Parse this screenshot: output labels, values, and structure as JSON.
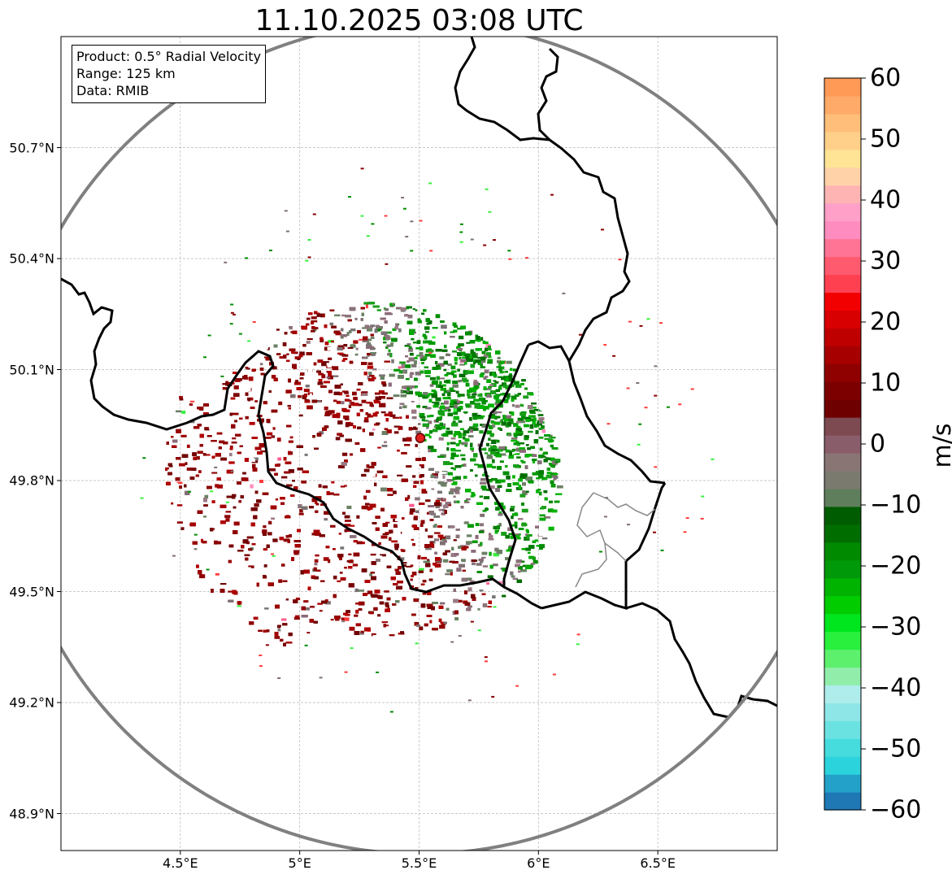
{
  "title": "11.10.2025 03:08 UTC",
  "info": {
    "line1": "Product: 0.5° Radial Velocity",
    "line2": "Range: 125 km",
    "line3": "Data: RMIB"
  },
  "map": {
    "lon_range": [
      4.0,
      7.0
    ],
    "lat_range": [
      48.8,
      51.0
    ],
    "radar_site": {
      "lon": 5.505,
      "lat": 49.915
    },
    "range_ring_km": 125,
    "grid": true,
    "lat_ticks": [
      {
        "value": 50.7,
        "label": "50.7°N"
      },
      {
        "value": 50.4,
        "label": "50.4°N"
      },
      {
        "value": 50.1,
        "label": "50.1°N"
      },
      {
        "value": 49.8,
        "label": "49.8°N"
      },
      {
        "value": 49.5,
        "label": "49.5°N"
      },
      {
        "value": 49.2,
        "label": "49.2°N"
      },
      {
        "value": 48.9,
        "label": "48.9°N"
      }
    ],
    "lon_ticks": [
      {
        "value": 4.5,
        "label": "4.5°E"
      },
      {
        "value": 5.0,
        "label": "5°E"
      },
      {
        "value": 5.5,
        "label": "5.5°E"
      },
      {
        "value": 6.0,
        "label": "6°E"
      },
      {
        "value": 6.5,
        "label": "6.5°E"
      }
    ],
    "colors": {
      "border": "#000000",
      "ring": "#808080",
      "inner_border": "#808080",
      "radar_dot": "#e0201c"
    }
  },
  "colorbar": {
    "unit": "m/s",
    "min": -60,
    "max": 60,
    "ticks": [
      {
        "value": 60,
        "label": "60"
      },
      {
        "value": 50,
        "label": "50"
      },
      {
        "value": 40,
        "label": "40"
      },
      {
        "value": 30,
        "label": "30"
      },
      {
        "value": 20,
        "label": "20"
      },
      {
        "value": 10,
        "label": "10"
      },
      {
        "value": 0,
        "label": "0"
      },
      {
        "value": -10,
        "label": "−10"
      },
      {
        "value": -20,
        "label": "−20"
      },
      {
        "value": -30,
        "label": "−30"
      },
      {
        "value": -40,
        "label": "−40"
      },
      {
        "value": -50,
        "label": "−50"
      },
      {
        "value": -60,
        "label": "−60"
      }
    ],
    "bands": [
      "#1f77b4",
      "#23a1c8",
      "#2bd3dc",
      "#46dcde",
      "#6be2e2",
      "#8ee6e6",
      "#afecec",
      "#90eeaa",
      "#5cf06c",
      "#29f03c",
      "#00e61e",
      "#00cc00",
      "#00b300",
      "#00990a",
      "#008a00",
      "#006d00",
      "#005c00",
      "#5f7f5c",
      "#7a7a6f",
      "#8a7575",
      "#8a5d6b",
      "#7d4a52",
      "#6f0000",
      "#7d0000",
      "#8f0000",
      "#a60000",
      "#bf0000",
      "#d80000",
      "#f20000",
      "#ff4050",
      "#ff5a6e",
      "#ff7394",
      "#ff8cbe",
      "#ffa0c8",
      "#ffb4b4",
      "#ffd2a8",
      "#ffe496",
      "#ffd08a",
      "#ffbe7a",
      "#ffaa68",
      "#ff9a56"
    ]
  }
}
